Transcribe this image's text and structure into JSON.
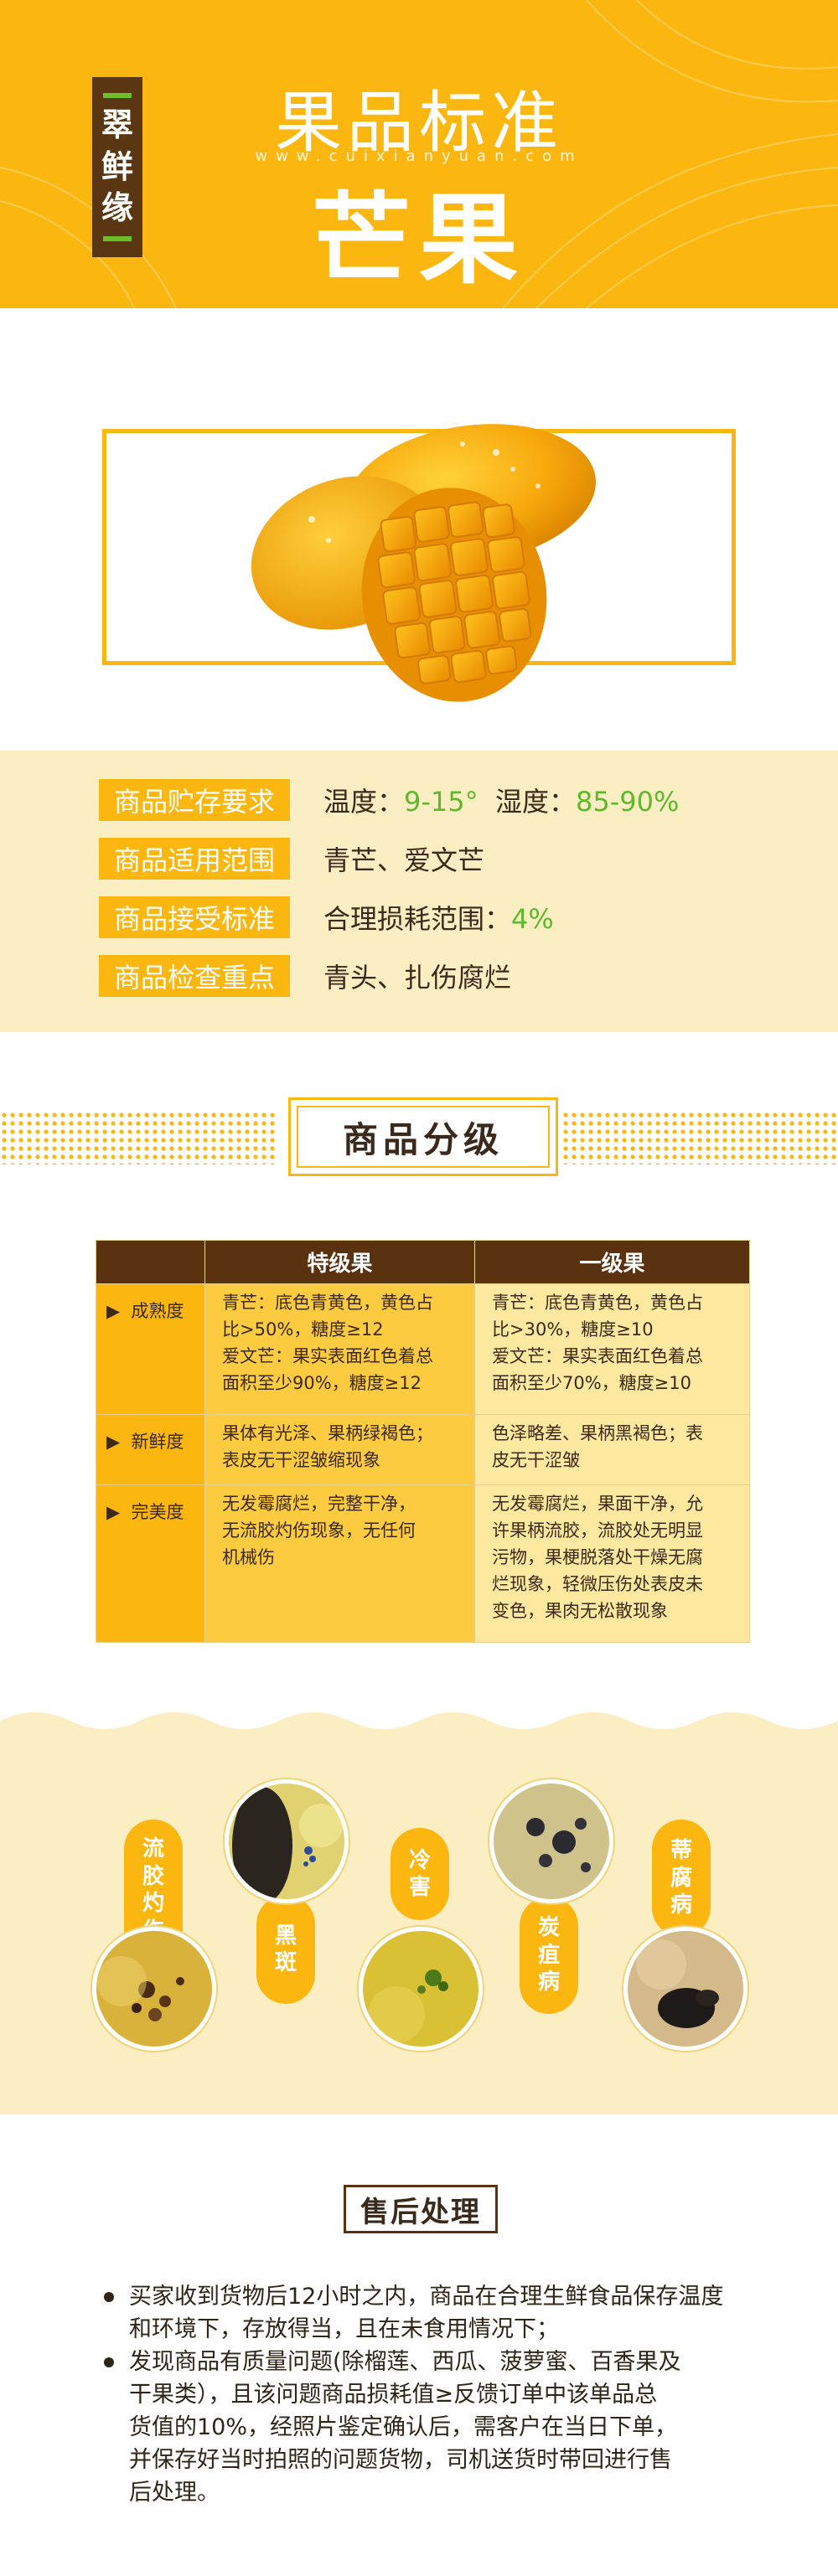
{
  "header": {
    "brand": [
      "翠",
      "鲜",
      "缘"
    ],
    "title_top": "果品标准",
    "url": "www.cuixianyuan.com",
    "title_main": "芒果"
  },
  "info": [
    {
      "label": "商品贮存要求",
      "value_parts": [
        {
          "t": "温度：",
          "green": false
        },
        {
          "t": "9-15°",
          "green": true
        },
        {
          "t": "  湿度：",
          "green": false
        },
        {
          "t": "85-90%",
          "green": true
        }
      ]
    },
    {
      "label": "商品适用范围",
      "value_parts": [
        {
          "t": "青芒、爱文芒",
          "green": false
        }
      ]
    },
    {
      "label": "商品接受标准",
      "value_parts": [
        {
          "t": "合理损耗范围：",
          "green": false
        },
        {
          "t": "4%",
          "green": true
        }
      ]
    },
    {
      "label": "商品检查重点",
      "value_parts": [
        {
          "t": "青头、扎伤腐烂",
          "green": false
        }
      ]
    }
  ],
  "grading": {
    "title": "商品分级",
    "columns": [
      "",
      "特级果",
      "一级果"
    ],
    "rows": [
      {
        "name": "成熟度",
        "c1": [
          "青芒：底色青黄色，黄色占",
          "比>50%，糖度≥12",
          "爱文芒：果实表面红色着总",
          "面积至少90%，糖度≥12"
        ],
        "c2": [
          "青芒：底色青黄色，黄色占",
          "比>30%，糖度≥10",
          "爱文芒：果实表面红色着总",
          "面积至少70%，糖度≥10"
        ]
      },
      {
        "name": "新鲜度",
        "c1": [
          "果体有光泽、果柄绿褐色；",
          "表皮无干涩皱缩现象"
        ],
        "c2": [
          "色泽略差、果柄黑褐色；表",
          "皮无干涩皱"
        ]
      },
      {
        "name": "完美度",
        "c1": [
          "无发霉腐烂，完整干净，",
          "无流胶灼伤现象，无任何",
          "机械伤"
        ],
        "c2": [
          "无发霉腐烂，果面干净，允",
          "许果柄流胶，流胶处无明显",
          "污物，果梗脱落处干燥无腐",
          "烂现象，轻微压伤处表皮未",
          "变色，果肉无松散现象"
        ]
      }
    ]
  },
  "defects": [
    {
      "name": "流胶灼伤",
      "chars": [
        "流",
        "胶",
        "灼",
        "伤"
      ]
    },
    {
      "name": "黑斑",
      "chars": [
        "黑",
        "斑"
      ]
    },
    {
      "name": "冷害",
      "chars": [
        "冷",
        "害"
      ]
    },
    {
      "name": "炭疽病",
      "chars": [
        "炭",
        "疽",
        "病"
      ]
    },
    {
      "name": "蒂腐病",
      "chars": [
        "蒂",
        "腐",
        "病"
      ]
    }
  ],
  "after_sales": {
    "title": "售后处理",
    "items": [
      [
        "买家收到货物后12小时之内，商品在合理生鲜食品保存温度",
        "和环境下，存放得当，且在未食用情况下；"
      ],
      [
        "发现商品有质量问题(除榴莲、西瓜、菠萝蜜、百香果及",
        "干果类），且该问题商品损耗值≥反馈订单中该单品总",
        "货值的10%，经照片鉴定确认后，需客户在当日下单，",
        "并保存好当时拍照的问题货物，司机送货时带回进行售",
        "后处理。"
      ]
    ]
  },
  "colors": {
    "primary": "#fbb70f",
    "brown": "#5a3210",
    "cream": "#fbeec2",
    "green": "#5fb82c"
  }
}
